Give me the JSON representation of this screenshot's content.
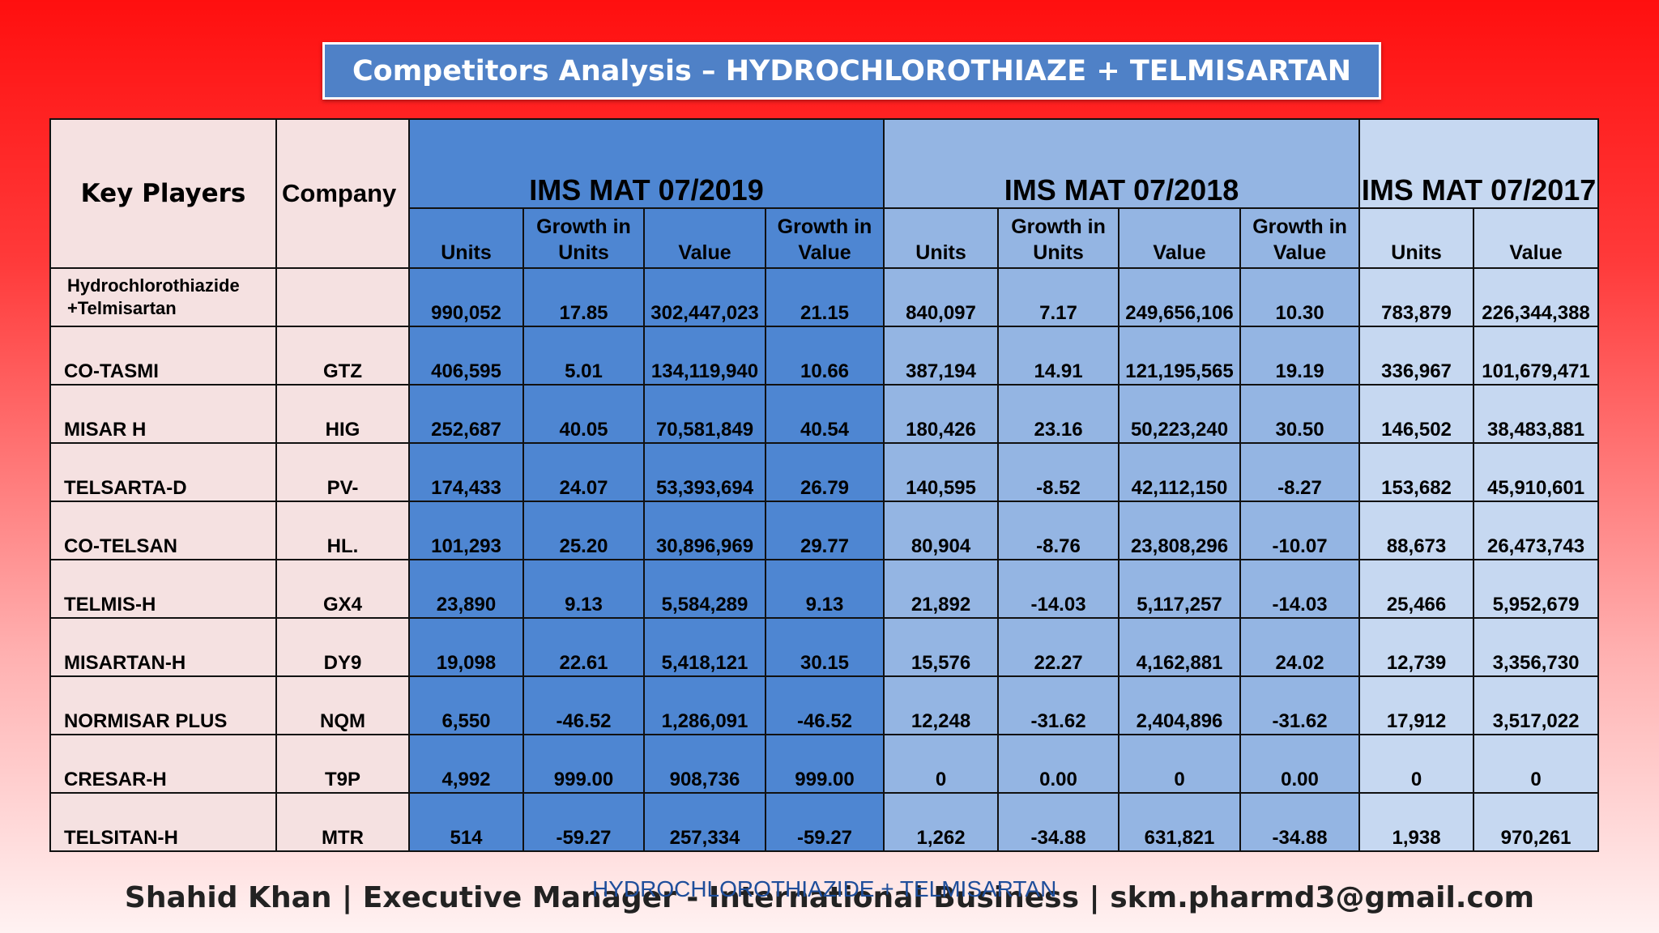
{
  "title": "Competitors Analysis – HYDROCHLOROTHIAZE + TELMISARTAN",
  "headers": {
    "key_players": "Key Players",
    "company": "Company",
    "periods": [
      "IMS MAT 07/2019",
      "IMS MAT 07/2018",
      "IMS MAT 07/2017"
    ],
    "sub_2019": [
      "Units",
      "Growth in Units",
      "Value",
      "Growth in Value"
    ],
    "sub_2018": [
      "Units",
      "Growth in Units",
      "Value",
      "Growth in Value"
    ],
    "sub_2017": [
      "Units",
      "Value"
    ]
  },
  "rows": [
    {
      "name": "Hydrochlorothiazide +Telmisartan",
      "company": "",
      "cells": [
        "990,052",
        "17.85",
        "302,447,023",
        "21.15",
        "840,097",
        "7.17",
        "249,656,106",
        "10.30",
        "783,879",
        "226,344,388"
      ]
    },
    {
      "name": "CO-TASMI",
      "company": "GTZ",
      "cells": [
        "406,595",
        "5.01",
        "134,119,940",
        "10.66",
        "387,194",
        "14.91",
        "121,195,565",
        "19.19",
        "336,967",
        "101,679,471"
      ]
    },
    {
      "name": "MISAR H",
      "company": "HIG",
      "cells": [
        "252,687",
        "40.05",
        "70,581,849",
        "40.54",
        "180,426",
        "23.16",
        "50,223,240",
        "30.50",
        "146,502",
        "38,483,881"
      ]
    },
    {
      "name": "TELSARTA-D",
      "company": "PV-",
      "cells": [
        "174,433",
        "24.07",
        "53,393,694",
        "26.79",
        "140,595",
        "-8.52",
        "42,112,150",
        "-8.27",
        "153,682",
        "45,910,601"
      ]
    },
    {
      "name": "CO-TELSAN",
      "company": "HL.",
      "cells": [
        "101,293",
        "25.20",
        "30,896,969",
        "29.77",
        "80,904",
        "-8.76",
        "23,808,296",
        "-10.07",
        "88,673",
        "26,473,743"
      ]
    },
    {
      "name": "TELMIS-H",
      "company": "GX4",
      "cells": [
        "23,890",
        "9.13",
        "5,584,289",
        "9.13",
        "21,892",
        "-14.03",
        "5,117,257",
        "-14.03",
        "25,466",
        "5,952,679"
      ]
    },
    {
      "name": "MISARTAN-H",
      "company": "DY9",
      "cells": [
        "19,098",
        "22.61",
        "5,418,121",
        "30.15",
        "15,576",
        "22.27",
        "4,162,881",
        "24.02",
        "12,739",
        "3,356,730"
      ]
    },
    {
      "name": "NORMISAR PLUS",
      "company": "NQM",
      "cells": [
        "6,550",
        "-46.52",
        "1,286,091",
        "-46.52",
        "12,248",
        "-31.62",
        "2,404,896",
        "-31.62",
        "17,912",
        "3,517,022"
      ]
    },
    {
      "name": "CRESAR-H",
      "company": "T9P",
      "cells": [
        "4,992",
        "999.00",
        "908,736",
        "999.00",
        "0",
        "0.00",
        "0",
        "0.00",
        "0",
        "0"
      ]
    },
    {
      "name": "TELSITAN-H",
      "company": "MTR",
      "cells": [
        "514",
        "-59.27",
        "257,334",
        "-59.27",
        "1,262",
        "-34.88",
        "631,821",
        "-34.88",
        "1,938",
        "970,261"
      ]
    }
  ],
  "footer": {
    "text": "Shahid Khan | Executive Manager - International Business | skm.pharmd3@gmail.com",
    "overlay": "HYDROCHLOROTHIAZIDE + TELMISARTAN"
  },
  "colors": {
    "title_bg": "#4f81c7",
    "key_col": "#f5e1e1",
    "period_2019": "#4e86d2",
    "period_2018": "#94b5e3",
    "period_2017": "#c6d8f1",
    "overlay_text": "#1f4e9b"
  }
}
